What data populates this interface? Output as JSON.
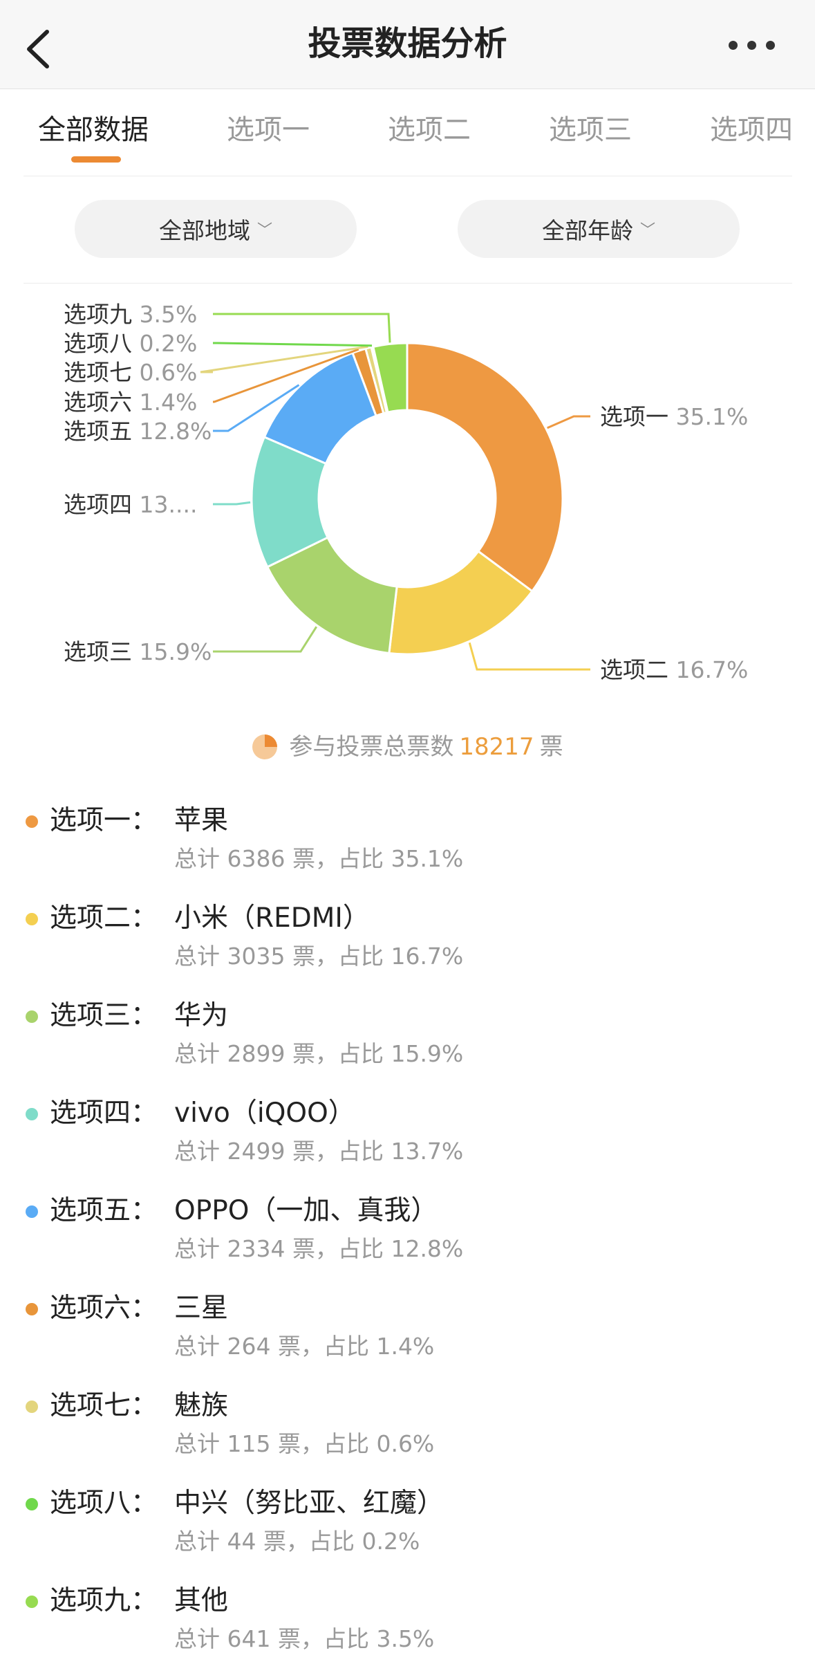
{
  "nav": {
    "title": "投票数据分析"
  },
  "tabs": [
    {
      "label": "全部数据",
      "active": true
    },
    {
      "label": "选项一",
      "active": false
    },
    {
      "label": "选项二",
      "active": false
    },
    {
      "label": "选项三",
      "active": false
    },
    {
      "label": "选项四",
      "active": false
    }
  ],
  "filters": {
    "region": "全部地域",
    "age": "全部年龄"
  },
  "chart_data": {
    "type": "pie",
    "categories": [
      "选项一",
      "选项二",
      "选项三",
      "选项四",
      "选项五",
      "选项六",
      "选项七",
      "选项八",
      "选项九"
    ],
    "values": [
      35.1,
      16.7,
      15.9,
      13.7,
      12.8,
      1.4,
      0.6,
      0.2,
      3.5
    ],
    "labels": [
      "选项一 35.1%",
      "选项二 16.7%",
      "选项三 15.9%",
      "选项四 13....",
      "选项五 12.8%",
      "选项六 1.4%",
      "选项七 0.6%",
      "选项八 0.2%",
      "选项九 3.5%"
    ],
    "colors": [
      "#ee9942",
      "#f4cf51",
      "#a9d36c",
      "#7fdcc9",
      "#5aabf5",
      "#e8953a",
      "#e3d57d",
      "#70d84b",
      "#97db51"
    ]
  },
  "summary": {
    "prefix": "参与投票总票数",
    "total": "18217",
    "unit": "票"
  },
  "options": [
    {
      "key": "选项一：",
      "name": "苹果",
      "stat": "总计 6386 票，占比 35.1%",
      "color": "#ee9942"
    },
    {
      "key": "选项二：",
      "name": "小米（REDMI）",
      "stat": "总计 3035 票，占比 16.7%",
      "color": "#f4cf51"
    },
    {
      "key": "选项三：",
      "name": "华为",
      "stat": "总计 2899 票，占比 15.9%",
      "color": "#a9d36c"
    },
    {
      "key": "选项四：",
      "name": "vivo（iQOO）",
      "stat": "总计 2499 票，占比 13.7%",
      "color": "#7fdcc9"
    },
    {
      "key": "选项五：",
      "name": "OPPO（一加、真我）",
      "stat": "总计 2334 票，占比 12.8%",
      "color": "#5aabf5"
    },
    {
      "key": "选项六：",
      "name": "三星",
      "stat": "总计 264 票，占比 1.4%",
      "color": "#e8953a"
    },
    {
      "key": "选项七：",
      "name": "魅族",
      "stat": "总计 115 票，占比 0.6%",
      "color": "#e3d57d"
    },
    {
      "key": "选项八：",
      "name": "中兴（努比亚、红魔）",
      "stat": "总计 44 票，占比 0.2%",
      "color": "#70d84b"
    },
    {
      "key": "选项九：",
      "name": "其他",
      "stat": "总计 641 票，占比 3.5%",
      "color": "#97db51"
    }
  ]
}
